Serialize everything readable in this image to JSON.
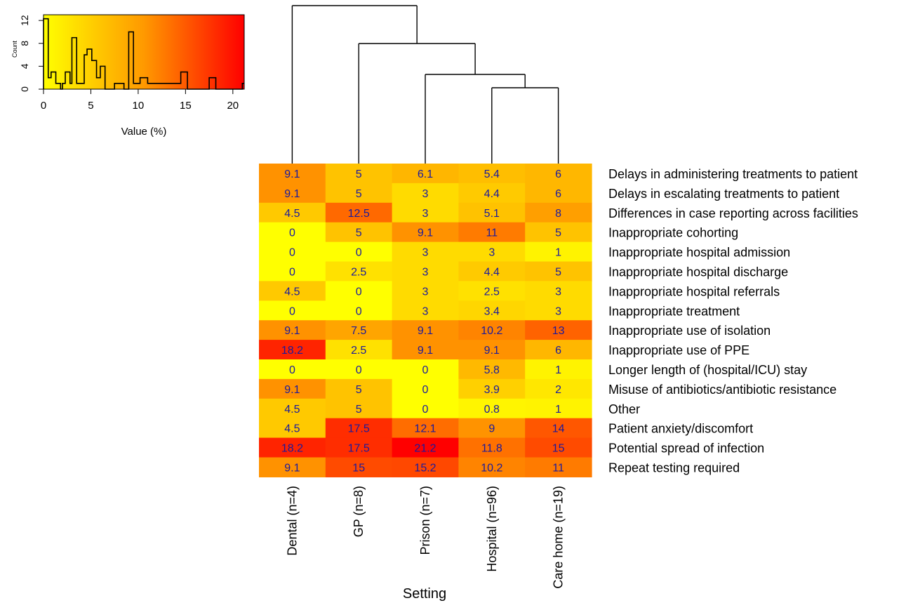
{
  "chart_data": {
    "type": "heatmap",
    "xlabel": "Setting",
    "columns": [
      "Dental (n=4)",
      "GP (n=8)",
      "Prison (n=7)",
      "Hospital (n=96)",
      "Care home (n=19)"
    ],
    "rows": [
      "Delays in administering treatments to patient",
      "Delays in escalating treatments to patient",
      "Differences in case reporting across facilities",
      "Inappropriate cohorting",
      "Inappropriate hospital admission",
      "Inappropriate hospital discharge",
      "Inappropriate hospital referrals",
      "Inappropriate treatment",
      "Inappropriate use of isolation",
      "Inappropriate use of PPE",
      "Longer length of (hospital/ICU) stay",
      "Misuse of antibiotics/antibiotic resistance",
      "Other",
      "Patient anxiety/discomfort",
      "Potential spread of infection",
      "Repeat testing required"
    ],
    "values": [
      [
        "9.1",
        "5",
        "6.1",
        "5.4",
        "6"
      ],
      [
        "9.1",
        "5",
        "3",
        "4.4",
        "6"
      ],
      [
        "4.5",
        "12.5",
        "3",
        "5.1",
        "8"
      ],
      [
        "0",
        "5",
        "9.1",
        "11",
        "5"
      ],
      [
        "0",
        "0",
        "3",
        "3",
        "1"
      ],
      [
        "0",
        "2.5",
        "3",
        "4.4",
        "5"
      ],
      [
        "4.5",
        "0",
        "3",
        "2.5",
        "3"
      ],
      [
        "0",
        "0",
        "3",
        "3.4",
        "3"
      ],
      [
        "9.1",
        "7.5",
        "9.1",
        "10.2",
        "13"
      ],
      [
        "18.2",
        "2.5",
        "9.1",
        "9.1",
        "6"
      ],
      [
        "0",
        "0",
        "0",
        "5.8",
        "1"
      ],
      [
        "9.1",
        "5",
        "0",
        "3.9",
        "2"
      ],
      [
        "4.5",
        "5",
        "0",
        "0.8",
        "1"
      ],
      [
        "4.5",
        "17.5",
        "12.1",
        "9",
        "14"
      ],
      [
        "18.2",
        "17.5",
        "21.2",
        "11.8",
        "15"
      ],
      [
        "9.1",
        "15",
        "15.2",
        "10.2",
        "11"
      ]
    ],
    "color_key": {
      "xlabel": "Value (%)",
      "ylabel": "Count",
      "x_ticks": [
        "0",
        "5",
        "10",
        "15",
        "20"
      ],
      "y_ticks": [
        "0",
        "4",
        "8",
        "12"
      ],
      "xlim": [
        0,
        21.2
      ],
      "ylim": [
        0,
        13
      ],
      "histogram": [
        [
          0,
          12.3
        ],
        [
          0.5,
          2
        ],
        [
          0.8,
          3
        ],
        [
          1.3,
          1
        ],
        [
          1.8,
          0
        ],
        [
          2.0,
          1
        ],
        [
          2.3,
          3
        ],
        [
          2.8,
          1
        ],
        [
          3.0,
          9
        ],
        [
          3.5,
          1
        ],
        [
          4.3,
          6
        ],
        [
          4.6,
          7
        ],
        [
          5.1,
          5
        ],
        [
          5.6,
          2
        ],
        [
          6.0,
          4
        ],
        [
          6.5,
          0
        ],
        [
          7.5,
          1
        ],
        [
          8.5,
          0
        ],
        [
          9.0,
          10
        ],
        [
          9.5,
          1
        ],
        [
          10.2,
          2
        ],
        [
          11.0,
          1
        ],
        [
          12.5,
          1
        ],
        [
          14.0,
          1
        ],
        [
          14.5,
          3
        ],
        [
          15.2,
          0
        ],
        [
          17.5,
          2
        ],
        [
          18.2,
          0
        ],
        [
          21.0,
          1
        ]
      ],
      "colors": [
        "#ffff00",
        "#ff0000"
      ]
    },
    "dendrogram": "Dental | (GP | (Prison | (Hospital, Care home)))",
    "label_color": "#1a1a9e"
  }
}
